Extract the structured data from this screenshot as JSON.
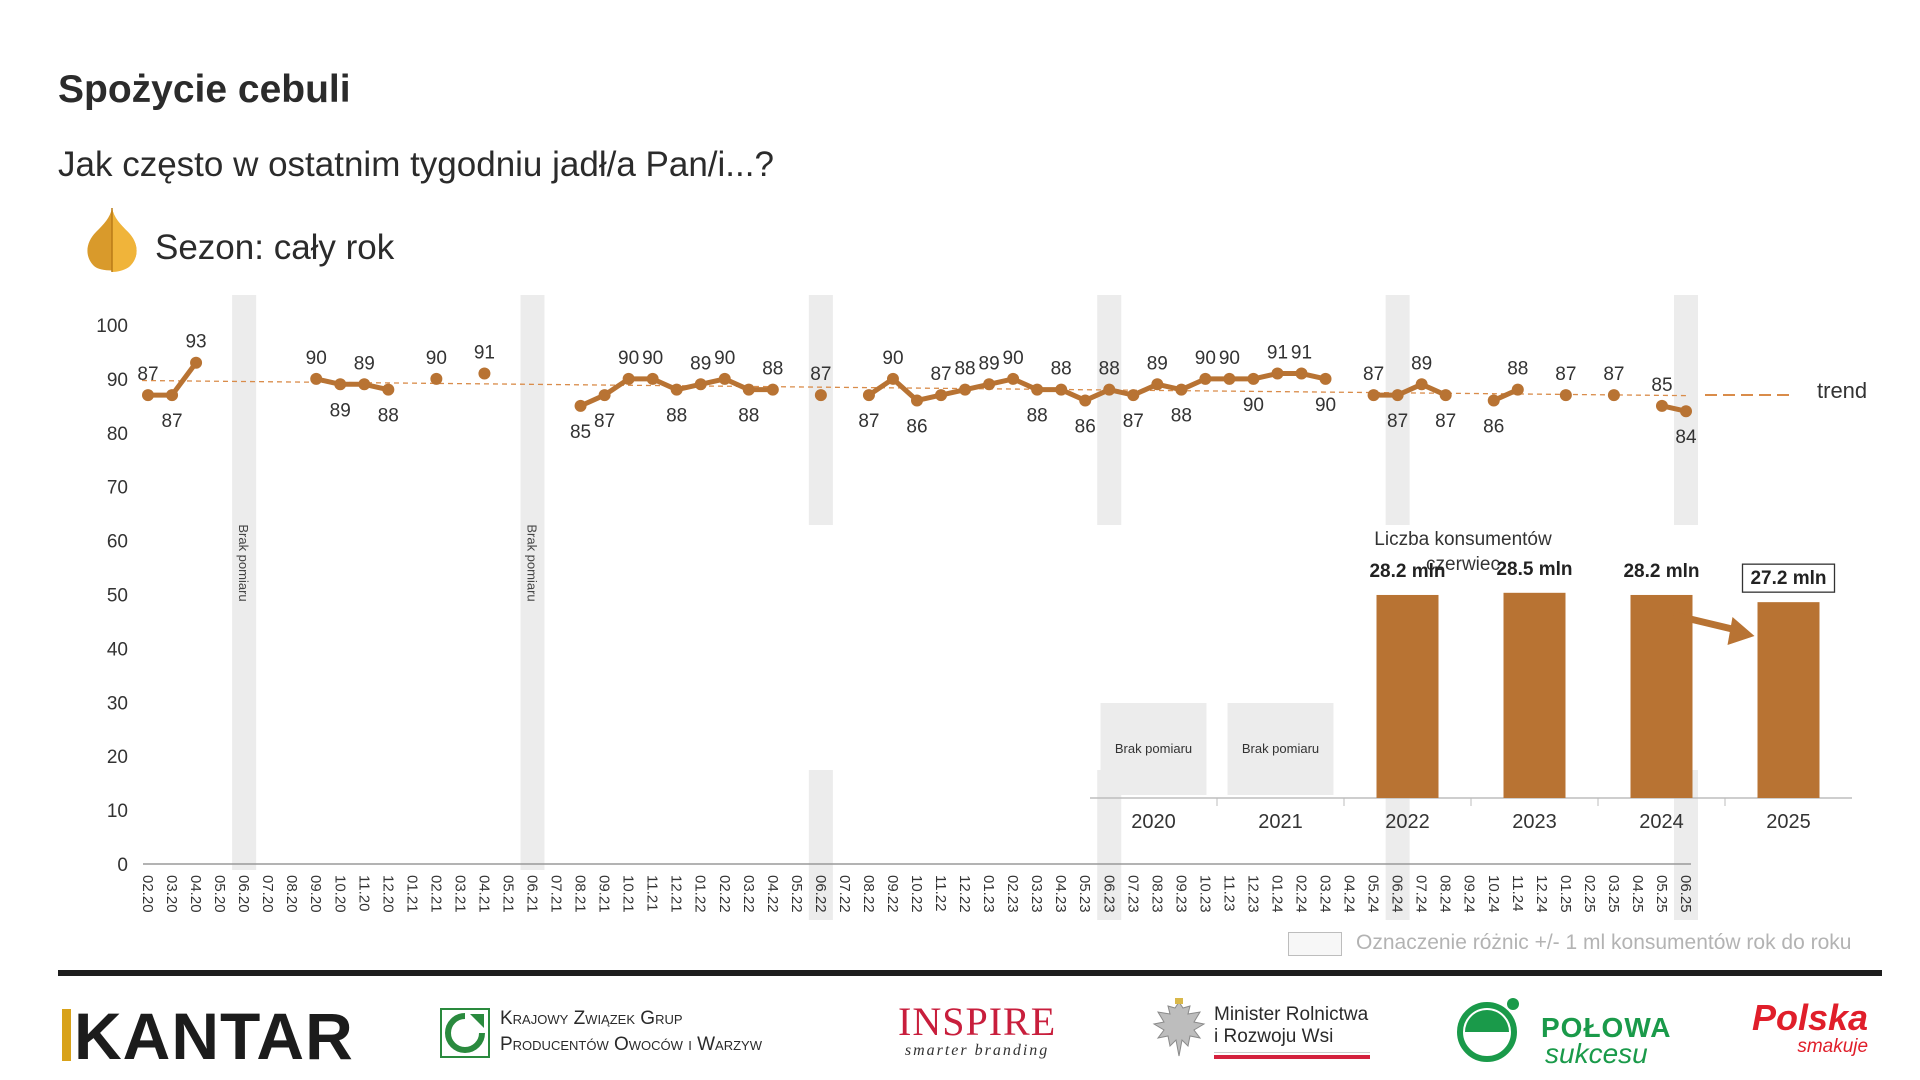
{
  "header": {
    "title": "Spożycie cebuli",
    "subtitle": "Jak często w ostatnim tygodniu jadł/a Pan/i...?",
    "season": "Sezon: cały rok",
    "season_icon": "onion-icon"
  },
  "colors": {
    "series": "#b87333",
    "trend": "#d98c4a",
    "gap_band": "#ececec",
    "bar": "#b87333",
    "text": "#2b2b2b"
  },
  "chart_data": [
    {
      "type": "line",
      "categories": [
        "02.20",
        "03.20",
        "04.20",
        "05.20",
        "06.20",
        "07.20",
        "08.20",
        "09.20",
        "10.20",
        "11.20",
        "12.20",
        "01.21",
        "02.21",
        "03.21",
        "04.21",
        "05.21",
        "06.21",
        "07.21",
        "08.21",
        "09.21",
        "10.21",
        "11.21",
        "12.21",
        "01.22",
        "02.22",
        "03.22",
        "04.22",
        "05.22",
        "06.22",
        "07.22",
        "08.22",
        "09.22",
        "10.22",
        "11.22",
        "12.22",
        "01.23",
        "02.23",
        "03.23",
        "04.23",
        "05.23",
        "06.23",
        "07.23",
        "08.23",
        "09.23",
        "10.23",
        "11.23",
        "12.23",
        "01.24",
        "02.24",
        "03.24",
        "04.24",
        "05.24",
        "06.24",
        "07.24",
        "08.24",
        "09.24",
        "10.24",
        "11.24",
        "12.24",
        "01.25",
        "02.25",
        "03.25",
        "04.25",
        "05.25",
        "06.25"
      ],
      "series": [
        {
          "values": [
            87,
            87,
            93,
            null,
            null,
            null,
            null,
            90,
            89,
            89,
            88,
            null,
            90,
            null,
            91,
            null,
            null,
            null,
            85,
            87,
            90,
            90,
            88,
            89,
            90,
            88,
            88,
            null,
            87,
            null,
            87,
            90,
            86,
            87,
            88,
            89,
            90,
            88,
            88,
            86,
            88,
            87,
            89,
            88,
            90,
            90,
            90,
            91,
            91,
            90,
            null,
            87,
            87,
            89,
            87,
            null,
            86,
            88,
            null,
            87,
            null,
            87,
            null,
            85,
            84
          ]
        },
        {
          "name": "trend",
          "type": "trend",
          "start": 89.7,
          "end": 86.9
        }
      ],
      "ylim": [
        0,
        100
      ],
      "yticks": [
        0,
        10,
        20,
        30,
        40,
        50,
        60,
        70,
        80,
        90,
        100
      ],
      "gap_annotations": [
        {
          "category": "06.20",
          "label": "Brak pomiaru"
        },
        {
          "category": "06.21",
          "label": "Brak pomiaru"
        }
      ],
      "highlight_categories": [
        "06.22",
        "06.23",
        "06.24",
        "06.25"
      ],
      "legend": "right"
    },
    {
      "type": "bar",
      "title_line1": "Liczba konsumentów",
      "title_line2": "czerwiec",
      "categories": [
        "2020",
        "2021",
        "2022",
        "2023",
        "2024",
        "2025"
      ],
      "values": [
        null,
        null,
        28.2,
        28.5,
        28.2,
        27.2
      ],
      "value_labels": [
        "Brak pomiaru",
        "Brak pomiaru",
        "28.2 mln",
        "28.5 mln",
        "28.2 mln",
        "27.2 mln"
      ],
      "highlighted": [
        "2025"
      ]
    }
  ],
  "legend_note": "Oznaczenie różnic +/- 1 ml konsumentów rok do roku",
  "footer": {
    "kantar": "KANTAR",
    "kzgpow_line1": "Krajowy Związek Grup",
    "kzgpow_line2": "Producentów Owoców i Warzyw",
    "inspire": "INSPIRE",
    "inspire_tag": "smarter branding",
    "minister_line1": "Minister Rolnictwa",
    "minister_line2": "i Rozwoju Wsi",
    "polowa_line1": "POŁOWA",
    "polowa_line2": "sukcesu",
    "polska_line1": "Polska",
    "polska_line2": "smakuje"
  }
}
